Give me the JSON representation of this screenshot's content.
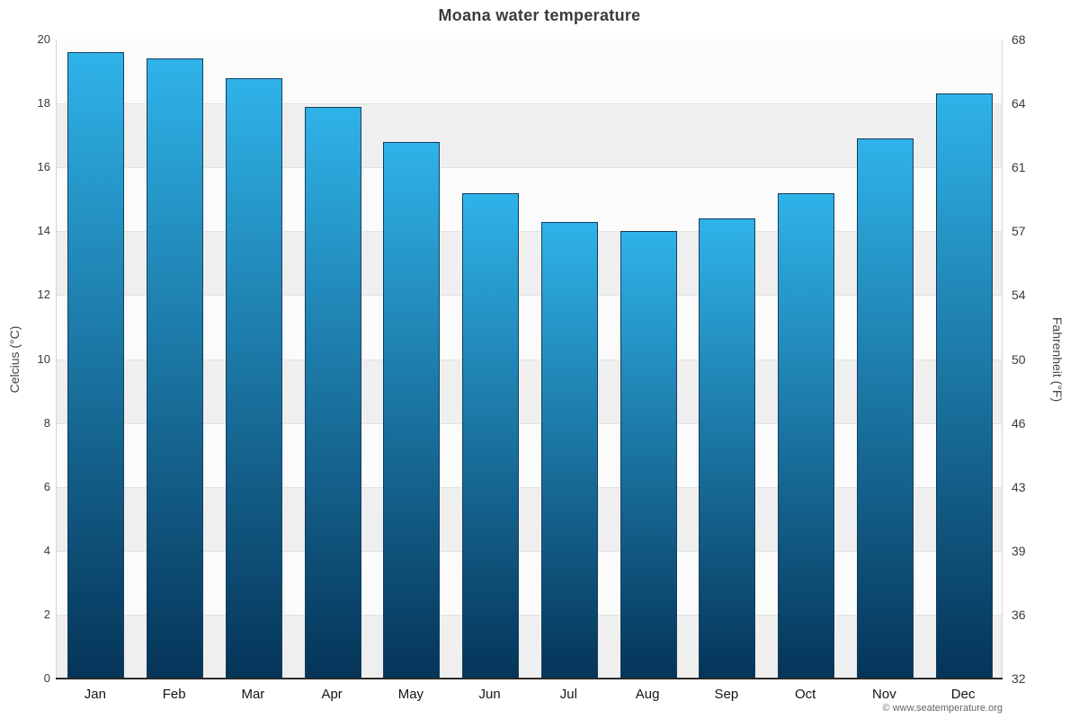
{
  "title": "Moana water temperature",
  "footer": "© www.seatemperature.org",
  "axes": {
    "left_label": "Celcius (°C)",
    "right_label": "Fahrenheit (°F)"
  },
  "chart_data": {
    "type": "bar",
    "title": "Moana water temperature",
    "categories": [
      "Jan",
      "Feb",
      "Mar",
      "Apr",
      "May",
      "Jun",
      "Jul",
      "Aug",
      "Sep",
      "Oct",
      "Nov",
      "Dec"
    ],
    "values": [
      19.6,
      19.4,
      18.8,
      17.9,
      16.8,
      15.2,
      14.3,
      14.0,
      14.4,
      15.2,
      16.9,
      18.3
    ],
    "xlabel": "",
    "ylabel": "Celcius (°C)",
    "ylabel_right": "Fahrenheit (°F)",
    "ylim": [
      0,
      20
    ],
    "yticks_celsius": [
      0,
      2,
      4,
      6,
      8,
      10,
      12,
      14,
      16,
      18,
      20
    ],
    "yticks_fahrenheit": [
      "32",
      "36",
      "39",
      "43",
      "46",
      "50",
      "54",
      "57",
      "61",
      "64",
      "68"
    ],
    "grid": "alternating-horizontal-bands",
    "legend": "none",
    "colors": {
      "bar_top": "#2fb3e9",
      "bar_bottom": "#053458",
      "bar_border": "#173d5c",
      "band_light": "#fbfbfb",
      "band_dark": "#efefef",
      "axis_line": "#2a2a2a"
    }
  }
}
